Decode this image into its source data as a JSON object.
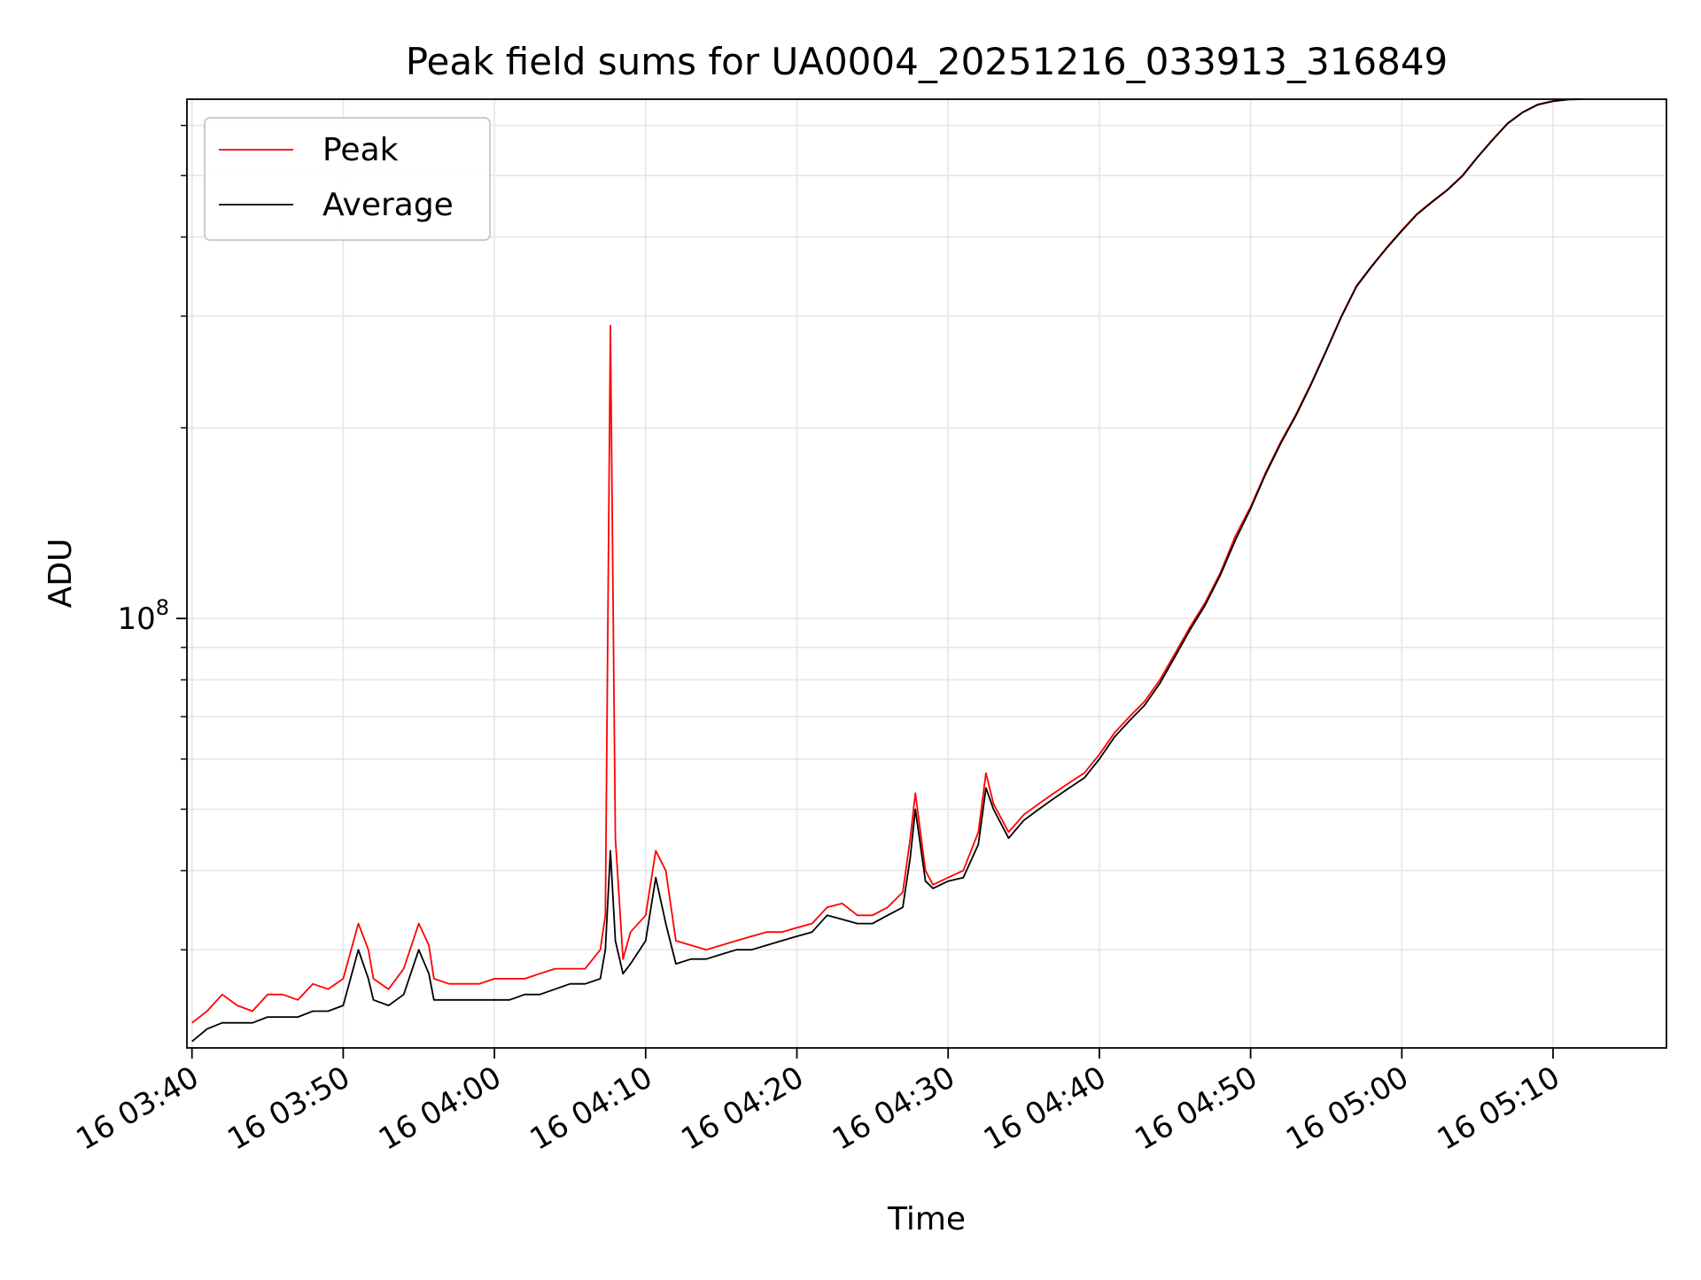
{
  "chart_data": {
    "type": "line",
    "title": "Peak field sums for UA0004_20251216_033913_316849",
    "xlabel": "Time",
    "ylabel": "ADU",
    "yscale": "log",
    "xlim": [
      "16 03:39:40",
      "16 05:17:30"
    ],
    "ylim": [
      21000000,
      660000000
    ],
    "x_ticks": [
      "16 03:40",
      "16 03:50",
      "16 04:00",
      "16 04:10",
      "16 04:20",
      "16 04:30",
      "16 04:40",
      "16 04:50",
      "16 05:00",
      "16 05:10"
    ],
    "y_ticks": [
      {
        "value": 100000000,
        "label": "10",
        "exp": "8"
      }
    ],
    "grid": true,
    "legend": "top-left",
    "series": [
      {
        "name": "Peak",
        "color": "#ff0000",
        "points": [
          [
            "16 03:40:00",
            23000000
          ],
          [
            "16 03:41:00",
            24000000
          ],
          [
            "16 03:42:00",
            25500000
          ],
          [
            "16 03:43:00",
            24500000
          ],
          [
            "16 03:44:00",
            24000000
          ],
          [
            "16 03:45:00",
            25500000
          ],
          [
            "16 03:46:00",
            25500000
          ],
          [
            "16 03:47:00",
            25000000
          ],
          [
            "16 03:48:00",
            26500000
          ],
          [
            "16 03:49:00",
            26000000
          ],
          [
            "16 03:50:00",
            27000000
          ],
          [
            "16 03:51:00",
            33000000
          ],
          [
            "16 03:51:40",
            30000000
          ],
          [
            "16 03:52:00",
            27000000
          ],
          [
            "16 03:53:00",
            26000000
          ],
          [
            "16 03:54:00",
            28000000
          ],
          [
            "16 03:55:00",
            33000000
          ],
          [
            "16 03:55:40",
            30500000
          ],
          [
            "16 03:56:00",
            27000000
          ],
          [
            "16 03:57:00",
            26500000
          ],
          [
            "16 03:58:00",
            26500000
          ],
          [
            "16 03:59:00",
            26500000
          ],
          [
            "16 04:00:00",
            27000000
          ],
          [
            "16 04:01:00",
            27000000
          ],
          [
            "16 04:02:00",
            27000000
          ],
          [
            "16 04:03:00",
            27500000
          ],
          [
            "16 04:04:00",
            28000000
          ],
          [
            "16 04:05:00",
            28000000
          ],
          [
            "16 04:06:00",
            28000000
          ],
          [
            "16 04:07:00",
            30000000
          ],
          [
            "16 04:07:20",
            34000000
          ],
          [
            "16 04:07:40",
            290000000
          ],
          [
            "16 04:08:00",
            45000000
          ],
          [
            "16 04:08:30",
            29000000
          ],
          [
            "16 04:09:00",
            32000000
          ],
          [
            "16 04:10:00",
            34000000
          ],
          [
            "16 04:10:40",
            43000000
          ],
          [
            "16 04:11:20",
            40000000
          ],
          [
            "16 04:12:00",
            31000000
          ],
          [
            "16 04:13:00",
            30500000
          ],
          [
            "16 04:14:00",
            30000000
          ],
          [
            "16 04:15:00",
            30500000
          ],
          [
            "16 04:16:00",
            31000000
          ],
          [
            "16 04:17:00",
            31500000
          ],
          [
            "16 04:18:00",
            32000000
          ],
          [
            "16 04:19:00",
            32000000
          ],
          [
            "16 04:20:00",
            32500000
          ],
          [
            "16 04:21:00",
            33000000
          ],
          [
            "16 04:22:00",
            35000000
          ],
          [
            "16 04:23:00",
            35500000
          ],
          [
            "16 04:24:00",
            34000000
          ],
          [
            "16 04:25:00",
            34000000
          ],
          [
            "16 04:26:00",
            35000000
          ],
          [
            "16 04:27:00",
            37000000
          ],
          [
            "16 04:27:30",
            45000000
          ],
          [
            "16 04:27:50",
            53000000
          ],
          [
            "16 04:28:30",
            40000000
          ],
          [
            "16 04:29:00",
            38000000
          ],
          [
            "16 04:30:00",
            39000000
          ],
          [
            "16 04:31:00",
            40000000
          ],
          [
            "16 04:32:00",
            46000000
          ],
          [
            "16 04:32:30",
            57000000
          ],
          [
            "16 04:33:00",
            51000000
          ],
          [
            "16 04:34:00",
            46000000
          ],
          [
            "16 04:35:00",
            49000000
          ],
          [
            "16 04:36:00",
            51000000
          ],
          [
            "16 04:37:00",
            53000000
          ],
          [
            "16 04:38:00",
            55000000
          ],
          [
            "16 04:39:00",
            57000000
          ],
          [
            "16 04:40:00",
            61000000
          ],
          [
            "16 04:41:00",
            66000000
          ],
          [
            "16 04:42:00",
            70000000
          ],
          [
            "16 04:43:00",
            74000000
          ],
          [
            "16 04:44:00",
            80000000
          ],
          [
            "16 04:45:00",
            88000000
          ],
          [
            "16 04:46:00",
            97000000
          ],
          [
            "16 04:47:00",
            106000000
          ],
          [
            "16 04:48:00",
            118000000
          ],
          [
            "16 04:49:00",
            135000000
          ],
          [
            "16 04:50:00",
            150000000
          ],
          [
            "16 04:51:00",
            170000000
          ],
          [
            "16 04:52:00",
            190000000
          ],
          [
            "16 04:53:00",
            210000000
          ],
          [
            "16 04:54:00",
            235000000
          ],
          [
            "16 04:55:00",
            265000000
          ],
          [
            "16 04:56:00",
            300000000
          ],
          [
            "16 04:57:00",
            335000000
          ],
          [
            "16 04:58:00",
            360000000
          ],
          [
            "16 04:59:00",
            385000000
          ],
          [
            "16 05:00:00",
            410000000
          ],
          [
            "16 05:01:00",
            435000000
          ],
          [
            "16 05:02:00",
            455000000
          ],
          [
            "16 05:03:00",
            475000000
          ],
          [
            "16 05:04:00",
            500000000
          ],
          [
            "16 05:05:00",
            535000000
          ],
          [
            "16 05:06:00",
            570000000
          ],
          [
            "16 05:07:00",
            605000000
          ],
          [
            "16 05:08:00",
            630000000
          ],
          [
            "16 05:09:00",
            648000000
          ],
          [
            "16 05:10:00",
            656000000
          ],
          [
            "16 05:11:00",
            660000000
          ],
          [
            "16 05:12:00",
            660000000
          ]
        ]
      },
      {
        "name": "Average",
        "color": "#000000",
        "points": [
          [
            "16 03:40:00",
            21500000
          ],
          [
            "16 03:41:00",
            22500000
          ],
          [
            "16 03:42:00",
            23000000
          ],
          [
            "16 03:43:00",
            23000000
          ],
          [
            "16 03:44:00",
            23000000
          ],
          [
            "16 03:45:00",
            23500000
          ],
          [
            "16 03:46:00",
            23500000
          ],
          [
            "16 03:47:00",
            23500000
          ],
          [
            "16 03:48:00",
            24000000
          ],
          [
            "16 03:49:00",
            24000000
          ],
          [
            "16 03:50:00",
            24500000
          ],
          [
            "16 03:51:00",
            30000000
          ],
          [
            "16 03:51:40",
            27000000
          ],
          [
            "16 03:52:00",
            25000000
          ],
          [
            "16 03:53:00",
            24500000
          ],
          [
            "16 03:54:00",
            25500000
          ],
          [
            "16 03:55:00",
            30000000
          ],
          [
            "16 03:55:40",
            27500000
          ],
          [
            "16 03:56:00",
            25000000
          ],
          [
            "16 03:57:00",
            25000000
          ],
          [
            "16 03:58:00",
            25000000
          ],
          [
            "16 03:59:00",
            25000000
          ],
          [
            "16 04:00:00",
            25000000
          ],
          [
            "16 04:01:00",
            25000000
          ],
          [
            "16 04:02:00",
            25500000
          ],
          [
            "16 04:03:00",
            25500000
          ],
          [
            "16 04:04:00",
            26000000
          ],
          [
            "16 04:05:00",
            26500000
          ],
          [
            "16 04:06:00",
            26500000
          ],
          [
            "16 04:07:00",
            27000000
          ],
          [
            "16 04:07:20",
            30000000
          ],
          [
            "16 04:07:40",
            43000000
          ],
          [
            "16 04:08:00",
            31000000
          ],
          [
            "16 04:08:30",
            27500000
          ],
          [
            "16 04:09:00",
            28500000
          ],
          [
            "16 04:10:00",
            31000000
          ],
          [
            "16 04:10:40",
            39000000
          ],
          [
            "16 04:11:20",
            33000000
          ],
          [
            "16 04:12:00",
            28500000
          ],
          [
            "16 04:13:00",
            29000000
          ],
          [
            "16 04:14:00",
            29000000
          ],
          [
            "16 04:15:00",
            29500000
          ],
          [
            "16 04:16:00",
            30000000
          ],
          [
            "16 04:17:00",
            30000000
          ],
          [
            "16 04:18:00",
            30500000
          ],
          [
            "16 04:19:00",
            31000000
          ],
          [
            "16 04:20:00",
            31500000
          ],
          [
            "16 04:21:00",
            32000000
          ],
          [
            "16 04:22:00",
            34000000
          ],
          [
            "16 04:23:00",
            33500000
          ],
          [
            "16 04:24:00",
            33000000
          ],
          [
            "16 04:25:00",
            33000000
          ],
          [
            "16 04:26:00",
            34000000
          ],
          [
            "16 04:27:00",
            35000000
          ],
          [
            "16 04:27:30",
            42000000
          ],
          [
            "16 04:27:50",
            50000000
          ],
          [
            "16 04:28:30",
            38500000
          ],
          [
            "16 04:29:00",
            37500000
          ],
          [
            "16 04:30:00",
            38500000
          ],
          [
            "16 04:31:00",
            39000000
          ],
          [
            "16 04:32:00",
            44000000
          ],
          [
            "16 04:32:30",
            54000000
          ],
          [
            "16 04:33:00",
            50000000
          ],
          [
            "16 04:34:00",
            45000000
          ],
          [
            "16 04:35:00",
            48000000
          ],
          [
            "16 04:36:00",
            50000000
          ],
          [
            "16 04:37:00",
            52000000
          ],
          [
            "16 04:38:00",
            54000000
          ],
          [
            "16 04:39:00",
            56000000
          ],
          [
            "16 04:40:00",
            60000000
          ],
          [
            "16 04:41:00",
            65000000
          ],
          [
            "16 04:42:00",
            69000000
          ],
          [
            "16 04:43:00",
            73000000
          ],
          [
            "16 04:44:00",
            79000000
          ],
          [
            "16 04:45:00",
            87000000
          ],
          [
            "16 04:46:00",
            96000000
          ],
          [
            "16 04:47:00",
            105000000
          ],
          [
            "16 04:48:00",
            117000000
          ],
          [
            "16 04:49:00",
            133000000
          ],
          [
            "16 04:50:00",
            149000000
          ],
          [
            "16 04:51:00",
            169000000
          ],
          [
            "16 04:52:00",
            189000000
          ],
          [
            "16 04:53:00",
            209000000
          ],
          [
            "16 04:54:00",
            234000000
          ],
          [
            "16 04:55:00",
            264000000
          ],
          [
            "16 04:56:00",
            299000000
          ],
          [
            "16 04:57:00",
            334000000
          ],
          [
            "16 04:58:00",
            359000000
          ],
          [
            "16 04:59:00",
            384000000
          ],
          [
            "16 05:00:00",
            409000000
          ],
          [
            "16 05:01:00",
            434000000
          ],
          [
            "16 05:02:00",
            454000000
          ],
          [
            "16 05:03:00",
            474000000
          ],
          [
            "16 05:04:00",
            499000000
          ],
          [
            "16 05:05:00",
            534000000
          ],
          [
            "16 05:06:00",
            569000000
          ],
          [
            "16 05:07:00",
            604000000
          ],
          [
            "16 05:08:00",
            629000000
          ],
          [
            "16 05:09:00",
            647000000
          ],
          [
            "16 05:10:00",
            655000000
          ],
          [
            "16 05:11:00",
            659000000
          ],
          [
            "16 05:12:00",
            660000000
          ]
        ]
      }
    ]
  }
}
